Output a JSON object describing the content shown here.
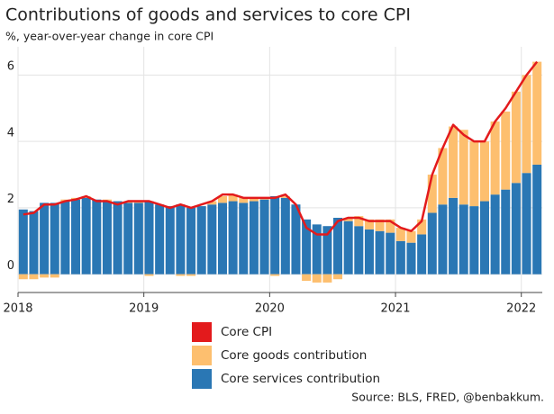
{
  "chart_data": {
    "type": "bar",
    "stacked": true,
    "title": "Contributions of goods and services to core CPI",
    "subtitle": "%, year-over-year change in core CPI",
    "source": "Source: BLS, FRED, @benbakkum.",
    "categories": [
      "2018",
      null,
      null,
      null,
      null,
      null,
      null,
      null,
      null,
      null,
      null,
      null,
      "2019",
      null,
      null,
      null,
      null,
      null,
      null,
      null,
      null,
      null,
      null,
      null,
      "2020",
      null,
      null,
      null,
      null,
      null,
      null,
      null,
      null,
      null,
      null,
      null,
      "2021",
      null,
      null,
      null,
      null,
      null,
      null,
      null,
      null,
      null,
      null,
      null,
      "2022",
      null
    ],
    "series": [
      {
        "name": "Core CPI",
        "type": "line",
        "color": "#e31a1c",
        "values": [
          1.8,
          1.85,
          2.1,
          2.1,
          2.2,
          2.25,
          2.35,
          2.2,
          2.2,
          2.1,
          2.2,
          2.2,
          2.2,
          2.1,
          2.0,
          2.1,
          2.0,
          2.1,
          2.2,
          2.4,
          2.4,
          2.3,
          2.3,
          2.3,
          2.3,
          2.4,
          2.1,
          1.4,
          1.2,
          1.2,
          1.6,
          1.7,
          1.7,
          1.6,
          1.6,
          1.6,
          1.4,
          1.3,
          1.6,
          3.0,
          3.8,
          4.5,
          4.2,
          4.0,
          4.0,
          4.6,
          5.0,
          5.5,
          6.0,
          6.4
        ]
      },
      {
        "name": "Core goods contribution",
        "type": "bar",
        "color": "#fdbf6f",
        "values": [
          -0.15,
          -0.15,
          -0.1,
          -0.1,
          0.05,
          0.05,
          0.05,
          0,
          0.05,
          0,
          0.05,
          0.05,
          -0.05,
          0,
          0,
          -0.05,
          -0.05,
          0,
          0.1,
          0.2,
          0.2,
          0.15,
          0.1,
          0.05,
          -0.05,
          0.05,
          0,
          -0.2,
          -0.25,
          -0.25,
          -0.15,
          0.1,
          0.3,
          0.3,
          0.35,
          0.4,
          0.4,
          0.35,
          0.45,
          1.15,
          1.7,
          2.15,
          2.25,
          1.95,
          1.8,
          2.2,
          2.35,
          2.75,
          2.95,
          3.1
        ]
      },
      {
        "name": "Core services contribution",
        "type": "bar",
        "color": "#2a77b4",
        "values": [
          1.95,
          1.9,
          2.15,
          2.15,
          2.2,
          2.25,
          2.3,
          2.25,
          2.2,
          2.2,
          2.15,
          2.15,
          2.2,
          2.1,
          2.05,
          2.1,
          2.0,
          2.05,
          2.1,
          2.15,
          2.2,
          2.15,
          2.2,
          2.25,
          2.35,
          2.3,
          2.1,
          1.65,
          1.5,
          1.45,
          1.7,
          1.6,
          1.45,
          1.35,
          1.3,
          1.25,
          1.0,
          0.95,
          1.2,
          1.85,
          2.1,
          2.3,
          2.1,
          2.05,
          2.2,
          2.4,
          2.55,
          2.75,
          3.05,
          3.3
        ]
      }
    ],
    "ylim": [
      -0.55,
      6.85
    ],
    "yticks": [
      0,
      2,
      4,
      6
    ],
    "grid": true
  }
}
